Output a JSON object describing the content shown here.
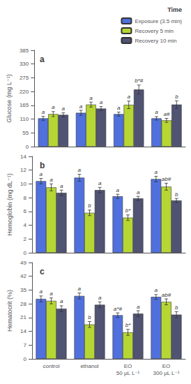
{
  "chart_data": [
    {
      "type": "bar",
      "title": "a",
      "ylabel": "Glucose (mg L⁻¹)",
      "categories": [
        null,
        null,
        null,
        null
      ],
      "series": [
        {
          "name": "Exposure (3.5 min)",
          "values": [
            113,
            135,
            130,
            113
          ],
          "errors": [
            8,
            10,
            8,
            7
          ],
          "annotations": [
            "a",
            "a",
            "a",
            "a"
          ]
        },
        {
          "name": "Recovery 5 min",
          "values": [
            130,
            168,
            167,
            105
          ],
          "errors": [
            10,
            10,
            15,
            8
          ],
          "annotations": [
            "a",
            "a",
            "a",
            "a#"
          ]
        },
        {
          "name": "Recovery 10 min",
          "values": [
            127,
            152,
            228,
            168
          ],
          "errors": [
            8,
            8,
            18,
            15
          ],
          "annotations": [
            "a",
            "a",
            "b*#",
            "b"
          ]
        }
      ],
      "ylim": [
        0,
        385
      ],
      "yticks": [
        0,
        55,
        110,
        165,
        220,
        275,
        330,
        385
      ],
      "grid": false,
      "legend": "upper right",
      "legend_title": "Time"
    },
    {
      "type": "bar",
      "title": "b",
      "ylabel": "Hemoglobin (mg dL⁻¹)",
      "categories": [
        null,
        null,
        null,
        null
      ],
      "series": [
        {
          "name": "Exposure (3.5 min)",
          "values": [
            10.4,
            10.9,
            8.2,
            10.7
          ],
          "errors": [
            0.4,
            0.5,
            0.3,
            0.4
          ],
          "annotations": [
            "a",
            "a",
            "a",
            "a"
          ]
        },
        {
          "name": "Recovery 5 min",
          "values": [
            9.5,
            5.8,
            5.1,
            9.6
          ],
          "errors": [
            0.5,
            0.4,
            0.4,
            0.5
          ],
          "annotations": [
            "a",
            "b",
            "b*",
            "ab#"
          ]
        },
        {
          "name": "Recovery 10 min",
          "values": [
            8.7,
            9.1,
            7.9,
            7.6
          ],
          "errors": [
            0.4,
            0.4,
            0.3,
            0.3
          ],
          "annotations": [
            "a",
            "a",
            "a",
            "b"
          ]
        }
      ],
      "ylim": [
        0,
        14
      ],
      "yticks": [
        0,
        2,
        4,
        6,
        8,
        10,
        12,
        14
      ],
      "grid": false
    },
    {
      "type": "bar",
      "title": "c",
      "ylabel": "Hematocrit (%)",
      "categories": [
        "control",
        "ethanol",
        "EO\n50 μL L⁻¹",
        "EO\n300 μL L⁻¹"
      ],
      "series": [
        {
          "name": "Exposure (3.5 min)",
          "values": [
            30.5,
            32.0,
            22.2,
            31.5
          ],
          "errors": [
            1.5,
            1.5,
            1.2,
            1.2
          ],
          "annotations": [
            "a",
            "a",
            "a*#",
            "a"
          ]
        },
        {
          "name": "Recovery 5 min",
          "values": [
            29.5,
            17.5,
            13.5,
            29.0
          ],
          "errors": [
            1.5,
            1.5,
            1.5,
            1.5
          ],
          "annotations": [
            "a",
            "b",
            "b*",
            "ab#"
          ]
        },
        {
          "name": "Recovery 10 min",
          "values": [
            25.5,
            27.5,
            23.0,
            22.5
          ],
          "errors": [
            1.5,
            1.5,
            1.5,
            1.5
          ],
          "annotations": [
            "a",
            "a",
            "a",
            "b"
          ]
        }
      ],
      "ylim": [
        0,
        49
      ],
      "yticks": [
        0,
        7,
        14,
        21,
        28,
        35,
        42,
        49
      ],
      "grid": false
    }
  ]
}
